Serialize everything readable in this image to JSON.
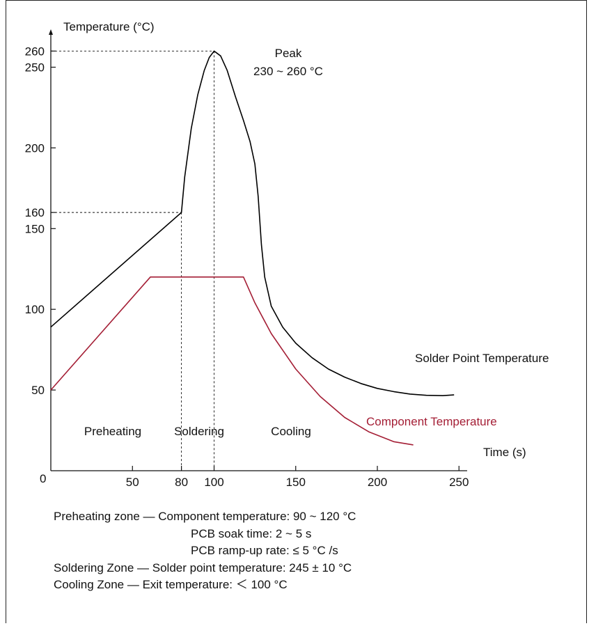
{
  "chart_data": {
    "type": "line",
    "ylabel": "Temperature (°C)",
    "xlabel": "Time (s)",
    "origin_label": "0",
    "x_ticks": [
      50,
      80,
      100,
      150,
      200,
      250
    ],
    "x_tick_labels": [
      "50",
      "80",
      "100",
      "150",
      "200",
      "250"
    ],
    "y_ticks": [
      50,
      100,
      150,
      160,
      200,
      250,
      260
    ],
    "y_tick_labels": [
      "50",
      "100",
      "150",
      "160",
      "200",
      "250",
      "260"
    ],
    "xlim": [
      0,
      255
    ],
    "ylim": [
      0,
      275
    ],
    "series": [
      {
        "name": "Solder Point Temperature",
        "color": "#000000",
        "points": [
          [
            0,
            89
          ],
          [
            80,
            160
          ],
          [
            82,
            182
          ],
          [
            86,
            212
          ],
          [
            90,
            233
          ],
          [
            94,
            248
          ],
          [
            97,
            256
          ],
          [
            100,
            260
          ],
          [
            104,
            257
          ],
          [
            108,
            248
          ],
          [
            113,
            232
          ],
          [
            118,
            217
          ],
          [
            122,
            204
          ],
          [
            125,
            190
          ],
          [
            127,
            170
          ],
          [
            129,
            140
          ],
          [
            131,
            120
          ],
          [
            135,
            102
          ],
          [
            142,
            89
          ],
          [
            150,
            79
          ],
          [
            160,
            70
          ],
          [
            170,
            63
          ],
          [
            180,
            58
          ],
          [
            190,
            54
          ],
          [
            200,
            51
          ],
          [
            210,
            49
          ],
          [
            220,
            47.5
          ],
          [
            230,
            46.7
          ],
          [
            240,
            46.5
          ],
          [
            247,
            47
          ]
        ]
      },
      {
        "name": "Component Temperature",
        "color": "#a41e35",
        "points": [
          [
            0,
            50
          ],
          [
            61,
            120
          ],
          [
            118,
            120
          ],
          [
            125,
            104
          ],
          [
            135,
            85
          ],
          [
            150,
            63
          ],
          [
            165,
            46
          ],
          [
            180,
            33
          ],
          [
            195,
            24
          ],
          [
            210,
            18
          ],
          [
            222,
            16
          ]
        ]
      }
    ],
    "reference_lines": [
      {
        "label": "160",
        "x": 80,
        "y": 160
      },
      {
        "label": "260",
        "x": 100,
        "y": 260
      }
    ],
    "annotations": {
      "peak_title": "Peak",
      "peak_range": "230 ~ 260 °C",
      "zones": [
        "Preheating",
        "Soldering",
        "Cooling"
      ]
    }
  },
  "notes": [
    "Preheating zone — Component temperature: 90 ~ 120 °C",
    "PCB soak time: 2 ~ 5 s",
    "PCB ramp-up rate: ≤ 5 °C /s",
    "Soldering Zone — Solder point temperature: 245 ± 10 °C",
    "Cooling Zone — Exit temperature: ＜ 100 °C"
  ]
}
